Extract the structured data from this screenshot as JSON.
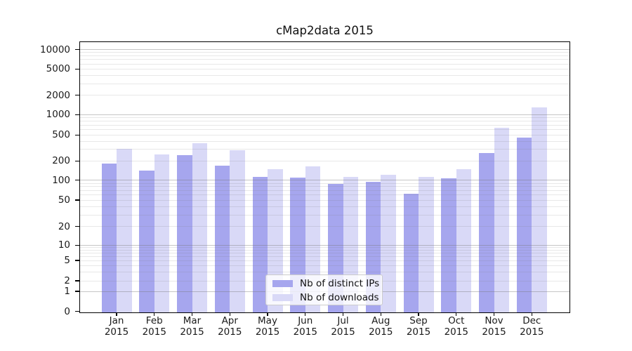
{
  "title": "cMap2data 2015",
  "chart_data": {
    "type": "bar",
    "title": "cMap2data 2015",
    "categories": [
      "Jan 2015",
      "Feb 2015",
      "Mar 2015",
      "Apr 2015",
      "May 2015",
      "Jun 2015",
      "Jul 2015",
      "Aug 2015",
      "Sep 2015",
      "Oct 2015",
      "Nov 2015",
      "Dec 2015"
    ],
    "series": [
      {
        "name": "Nb of distinct IPs",
        "color": "#a6a6ee",
        "values": [
          182,
          143,
          245,
          168,
          113,
          111,
          88,
          94,
          63,
          106,
          265,
          460
        ]
      },
      {
        "name": "Nb of downloads",
        "color": "#d9d9f7",
        "values": [
          310,
          252,
          370,
          290,
          150,
          163,
          112,
          123,
          112,
          150,
          645,
          1280
        ]
      }
    ],
    "xlabel": "",
    "ylabel": "",
    "y_axis_type": "symlog",
    "y_ticks": [
      0,
      1,
      2,
      5,
      10,
      20,
      50,
      100,
      200,
      500,
      1000,
      2000,
      5000,
      10000
    ],
    "ylim": [
      0,
      10500
    ],
    "grid": "on",
    "legend_position": "lower center"
  },
  "legend": {
    "items": [
      {
        "label": "Nb of distinct IPs",
        "color": "#a6a6ee"
      },
      {
        "label": "Nb of downloads",
        "color": "#d9d9f7"
      }
    ]
  },
  "colors": {
    "series_ips": "#a6a6ee",
    "series_downloads": "#d9d9f7",
    "background": "#ffffff",
    "spine": "#000000",
    "grid_major": "#cacaca",
    "grid_minor": "#ebebeb",
    "text": "#1a1a1a"
  }
}
